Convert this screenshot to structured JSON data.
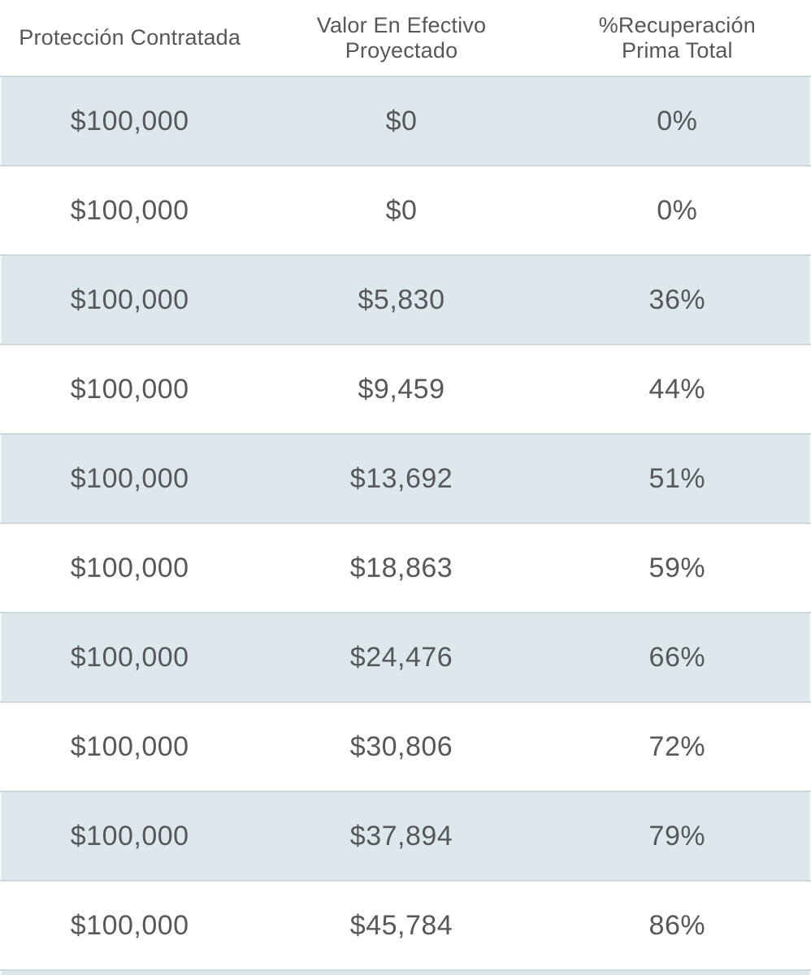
{
  "table": {
    "headers": [
      {
        "name": "proteccion-contratada",
        "lines": [
          "Protección Contratada"
        ]
      },
      {
        "name": "valor-en-efectivo-proyectado",
        "lines": [
          "Valor En Efectivo",
          "Proyectado"
        ]
      },
      {
        "name": "recuperacion-prima-total",
        "lines": [
          "%Recuperación",
          "Prima Total"
        ]
      }
    ],
    "rows": [
      [
        "$100,000",
        "$0",
        "0%"
      ],
      [
        "$100,000",
        "$0",
        "0%"
      ],
      [
        "$100,000",
        "$5,830",
        "36%"
      ],
      [
        "$100,000",
        "$9,459",
        "44%"
      ],
      [
        "$100,000",
        "$13,692",
        "51%"
      ],
      [
        "$100,000",
        "$18,863",
        "59%"
      ],
      [
        "$100,000",
        "$24,476",
        "66%"
      ],
      [
        "$100,000",
        "$30,806",
        "72%"
      ],
      [
        "$100,000",
        "$37,894",
        "79%"
      ],
      [
        "$100,000",
        "$45,784",
        "86%"
      ]
    ]
  },
  "chart_data": {
    "type": "table",
    "columns": [
      "Protección Contratada",
      "Valor En Efectivo Proyectado",
      "%Recuperación Prima Total"
    ],
    "proteccion_contratada": [
      100000,
      100000,
      100000,
      100000,
      100000,
      100000,
      100000,
      100000,
      100000,
      100000
    ],
    "valor_en_efectivo_proyectado": [
      0,
      0,
      5830,
      9459,
      13692,
      18863,
      24476,
      30806,
      37894,
      45784
    ],
    "recuperacion_prima_total_pct": [
      0,
      0,
      36,
      44,
      51,
      59,
      66,
      72,
      79,
      86
    ]
  },
  "colors": {
    "shaded_row_background": "#dde8ec",
    "row_separator": "#d2d7d9",
    "text": "#56585b",
    "page_background": "#ffffff"
  }
}
